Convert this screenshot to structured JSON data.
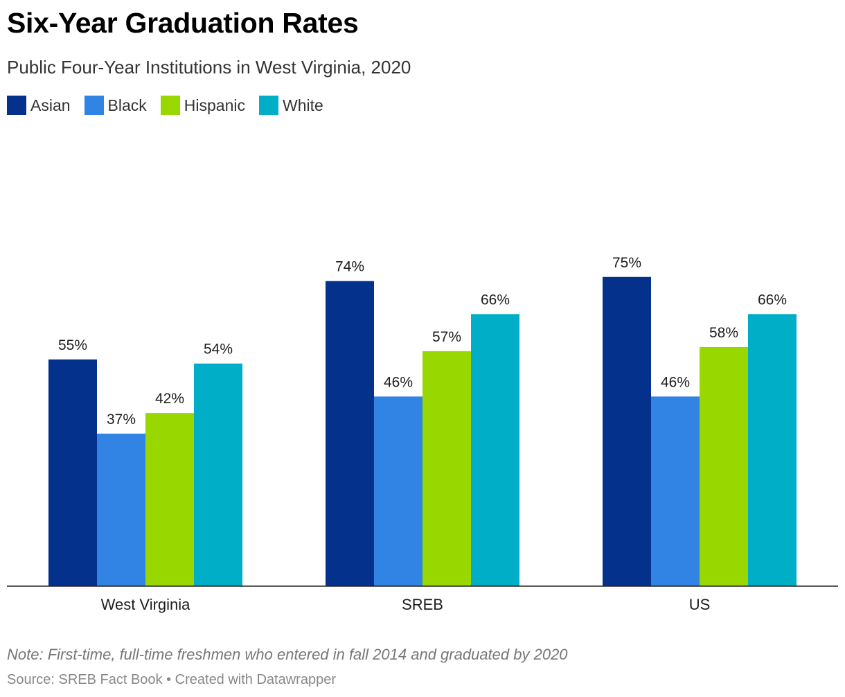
{
  "title": "Six-Year Graduation Rates",
  "subtitle": "Public Four-Year Institutions in West Virginia, 2020",
  "note": "Note: First-time, full-time freshmen who entered in fall 2014 and graduated by 2020",
  "source": "Source: SREB Fact Book • Created with Datawrapper",
  "chart_data": {
    "type": "bar",
    "categories": [
      "West Virginia",
      "SREB",
      "US"
    ],
    "series": [
      {
        "name": "Asian",
        "color": "#03318c",
        "values": [
          55,
          74,
          75
        ],
        "labels": [
          "55%",
          "74%",
          "75%"
        ]
      },
      {
        "name": "Black",
        "color": "#3184e4",
        "values": [
          37,
          46,
          46
        ],
        "labels": [
          "37%",
          "46%",
          "46%"
        ]
      },
      {
        "name": "Hispanic",
        "color": "#98d800",
        "values": [
          42,
          57,
          58
        ],
        "labels": [
          "42%",
          "57%",
          "58%"
        ]
      },
      {
        "name": "White",
        "color": "#00aec7",
        "values": [
          54,
          66,
          66
        ],
        "labels": [
          "54%",
          "66%",
          "66%"
        ]
      }
    ],
    "ylim": [
      0,
      100
    ],
    "grid": false,
    "legend": "top-left"
  }
}
